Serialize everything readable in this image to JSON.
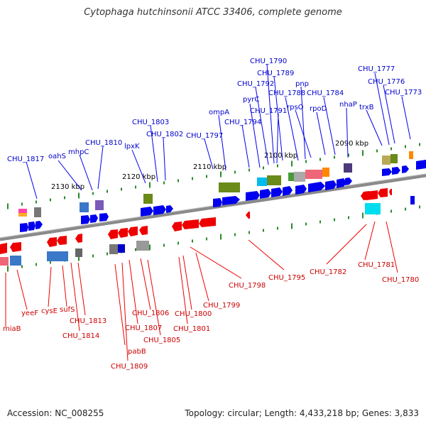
{
  "title": "Cytophaga hutchinsonii ATCC 33406, complete genome",
  "footer": {
    "accession": "Accession: NC_008255",
    "summary": "Topology: circular; Length: 4,433,218 bp; Genes: 3,833"
  },
  "colors": {
    "forward": "#0000ee",
    "reverse": "#ee0000",
    "backbone": "#888888",
    "tick": "#2a8a2a"
  },
  "scale_ticks": [
    "2130 kbp",
    "2120 kbp",
    "2110 kbp",
    "2100 kbp",
    "2090 kbp"
  ],
  "forward_genes": [
    "CHU_1817",
    "oahS",
    "mhpC",
    "CHU_1810",
    "lpxK",
    "CHU_1803",
    "CHU_1802",
    "CHU_1797",
    "ompA",
    "CHU_1794",
    "pyrC",
    "CHU_1792",
    "CHU_1791",
    "CHU_1790",
    "CHU_1789",
    "CHU_1788",
    "pnp",
    "rpsO",
    "rpoD",
    "CHU_1784",
    "nhaP",
    "trxB",
    "CHU_1777",
    "CHU_1776",
    "CHU_1773"
  ],
  "reverse_genes": [
    "miaB",
    "yeeF",
    "cysE",
    "sufS",
    "CHU_1813",
    "CHU_1814",
    "pabB",
    "CHU_1809",
    "CHU_1807",
    "CHU_1806",
    "CHU_1805",
    "CHU_1801",
    "CHU_1800",
    "CHU_1799",
    "CHU_1798",
    "CHU_1795",
    "CHU_1782",
    "CHU_1781",
    "CHU_1780"
  ]
}
